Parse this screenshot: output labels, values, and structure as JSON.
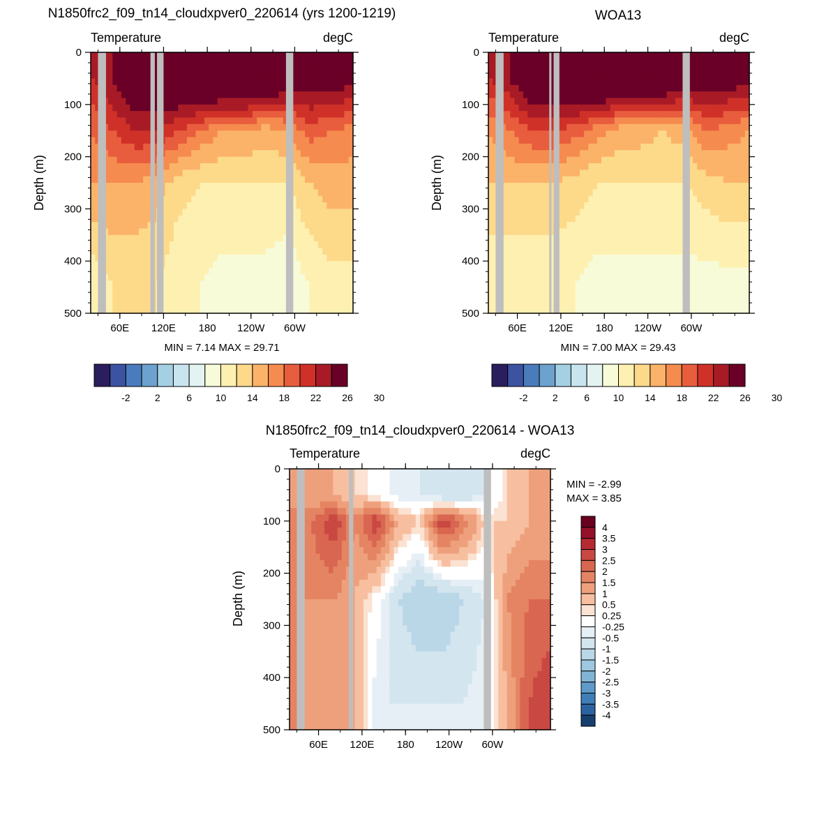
{
  "figure": {
    "background": "#ffffff",
    "land_color": "#bebebe",
    "axis_color": "#000000"
  },
  "chart_data": [
    {
      "type": "heatmap",
      "title": "N1850frc2_f09_tn14_cloudxpver0_220614 (yrs 1200-1219)",
      "left_label": "Temperature",
      "right_label": "degC",
      "ylabel": "Depth (m)",
      "y_ticks": [
        "0",
        "100",
        "200",
        "300",
        "400",
        "500"
      ],
      "ylim": [
        0,
        500
      ],
      "y_inverted": true,
      "x_ticks": [
        "60E",
        "120E",
        "180",
        "120W",
        "60W"
      ],
      "x_tick_lon": [
        60,
        120,
        180,
        240,
        300
      ],
      "xlim": [
        20,
        380
      ],
      "min_text": "MIN =   7.14  MAX =  29.71",
      "stats": {
        "min": 7.14,
        "max": 29.71
      },
      "land_lon": [
        [
          30,
          41
        ],
        [
          102,
          108
        ],
        [
          111,
          120
        ],
        [
          288,
          298
        ]
      ],
      "colorbar": {
        "orientation": "horizontal",
        "labels": [
          "-2",
          "2",
          "6",
          "10",
          "14",
          "18",
          "22",
          "26",
          "30"
        ],
        "colors": [
          "#2a1e5f",
          "#3b53a0",
          "#4a7cbd",
          "#6ca2cd",
          "#a5d0e3",
          "#c8e5ef",
          "#e3f3f1",
          "#f7fbd8",
          "#fef0b0",
          "#fdd98a",
          "#fbb369",
          "#f68b4f",
          "#e85d3d",
          "#cf3128",
          "#a81b26",
          "#6a0027"
        ]
      },
      "levels": [
        {
          "depth": 50,
          "values": [
            22,
            24,
            28,
            28,
            29,
            30,
            30,
            30,
            29,
            27,
            26,
            26,
            25
          ]
        },
        {
          "depth": 150,
          "values": [
            18,
            20,
            22,
            22,
            20,
            18,
            16,
            16,
            15,
            16,
            19,
            18,
            17
          ]
        },
        {
          "depth": 250,
          "values": [
            16,
            16,
            16,
            15,
            13,
            12,
            12,
            12,
            12,
            12,
            14,
            15,
            15
          ]
        },
        {
          "depth": 450,
          "values": [
            10,
            12,
            12,
            12,
            10,
            10,
            9,
            9,
            9,
            8,
            10,
            11,
            11
          ]
        }
      ]
    },
    {
      "type": "heatmap",
      "title": "WOA13",
      "left_label": "Temperature",
      "right_label": "degC",
      "ylabel": "Depth (m)",
      "y_ticks": [
        "0",
        "100",
        "200",
        "300",
        "400",
        "500"
      ],
      "ylim": [
        0,
        500
      ],
      "y_inverted": true,
      "x_ticks": [
        "60E",
        "120E",
        "180",
        "120W",
        "60W"
      ],
      "x_tick_lon": [
        60,
        120,
        180,
        240,
        300
      ],
      "xlim": [
        20,
        380
      ],
      "min_text": "MIN =   7.00  MAX =  29.43",
      "stats": {
        "min": 7.0,
        "max": 29.43
      },
      "land_lon": [
        [
          30,
          41
        ],
        [
          104,
          107
        ],
        [
          110,
          118
        ],
        [
          288,
          298
        ]
      ],
      "colorbar": {
        "orientation": "horizontal",
        "labels": [
          "-2",
          "2",
          "6",
          "10",
          "14",
          "18",
          "22",
          "26",
          "30"
        ],
        "colors": [
          "#2a1e5f",
          "#3b53a0",
          "#4a7cbd",
          "#6ca2cd",
          "#a5d0e3",
          "#c8e5ef",
          "#e3f3f1",
          "#f7fbd8",
          "#fef0b0",
          "#fdd98a",
          "#fbb369",
          "#f68b4f",
          "#e85d3d",
          "#cf3128",
          "#a81b26",
          "#6a0027"
        ]
      },
      "levels": [
        {
          "depth": 50,
          "values": [
            22,
            24,
            28,
            28,
            29,
            30,
            30,
            30,
            29,
            27,
            26,
            26,
            25
          ]
        },
        {
          "depth": 150,
          "values": [
            16,
            18,
            20,
            20,
            19,
            17,
            15,
            15,
            14,
            15,
            18,
            17,
            16
          ]
        },
        {
          "depth": 250,
          "values": [
            14,
            14,
            14,
            14,
            13,
            12,
            12,
            12,
            12,
            12,
            13,
            14,
            14
          ]
        },
        {
          "depth": 450,
          "values": [
            10,
            10,
            10,
            10,
            10,
            9,
            9,
            9,
            9,
            9,
            9,
            9,
            9
          ]
        }
      ]
    },
    {
      "type": "heatmap",
      "title": "N1850frc2_f09_tn14_cloudxpver0_220614 - WOA13",
      "left_label": "Temperature",
      "right_label": "degC",
      "ylabel": "Depth (m)",
      "y_ticks": [
        "0",
        "100",
        "200",
        "300",
        "400",
        "500"
      ],
      "ylim": [
        0,
        500
      ],
      "y_inverted": true,
      "x_ticks": [
        "60E",
        "120E",
        "180",
        "120W",
        "60W"
      ],
      "x_tick_lon": [
        60,
        120,
        180,
        240,
        300
      ],
      "xlim": [
        20,
        380
      ],
      "min_lines": [
        "MIN =  -2.99",
        "MAX =   3.85"
      ],
      "stats": {
        "min": -2.99,
        "max": 3.85
      },
      "land_lon": [
        [
          30,
          41
        ],
        [
          102,
          108
        ],
        [
          288,
          298
        ]
      ],
      "colorbar": {
        "orientation": "vertical",
        "labels": [
          "4",
          "3.5",
          "3",
          "2.5",
          "2",
          "1.5",
          "1",
          "0.5",
          "0.25",
          "-0.25",
          "-0.5",
          "-1",
          "-1.5",
          "-2",
          "-2.5",
          "-3",
          "-3.5",
          "-4"
        ],
        "colors": [
          "#6a0020",
          "#96102a",
          "#b62a34",
          "#c94842",
          "#d96650",
          "#e58462",
          "#eea07c",
          "#f7bfa0",
          "#fbe2d2",
          "#ffffff",
          "#e6eff5",
          "#d3e5ef",
          "#bad7e8",
          "#9ec8e1",
          "#80b5d7",
          "#5e9bc9",
          "#3f7fb8",
          "#2a63a0",
          "#163f6e"
        ]
      },
      "levels": [
        {
          "depth": 50,
          "values": [
            1.5,
            1,
            1,
            0.5,
            0,
            -0.5,
            -0.5,
            -1,
            -1,
            -0.5,
            0.5,
            1,
            1
          ]
        },
        {
          "depth": 100,
          "values": [
            1.5,
            2,
            3,
            1.5,
            3,
            1,
            0.5,
            3,
            2,
            0.5,
            0.5,
            1,
            1
          ]
        },
        {
          "depth": 250,
          "values": [
            1.5,
            1.5,
            1.5,
            1,
            0,
            -1,
            -1.5,
            -1.5,
            -1,
            -0.5,
            1.5,
            2,
            2
          ]
        },
        {
          "depth": 450,
          "values": [
            2,
            1,
            1,
            1,
            -0.5,
            -0.5,
            -0.5,
            -0.5,
            -0.5,
            -0.25,
            1,
            2.5,
            3
          ]
        }
      ]
    }
  ]
}
